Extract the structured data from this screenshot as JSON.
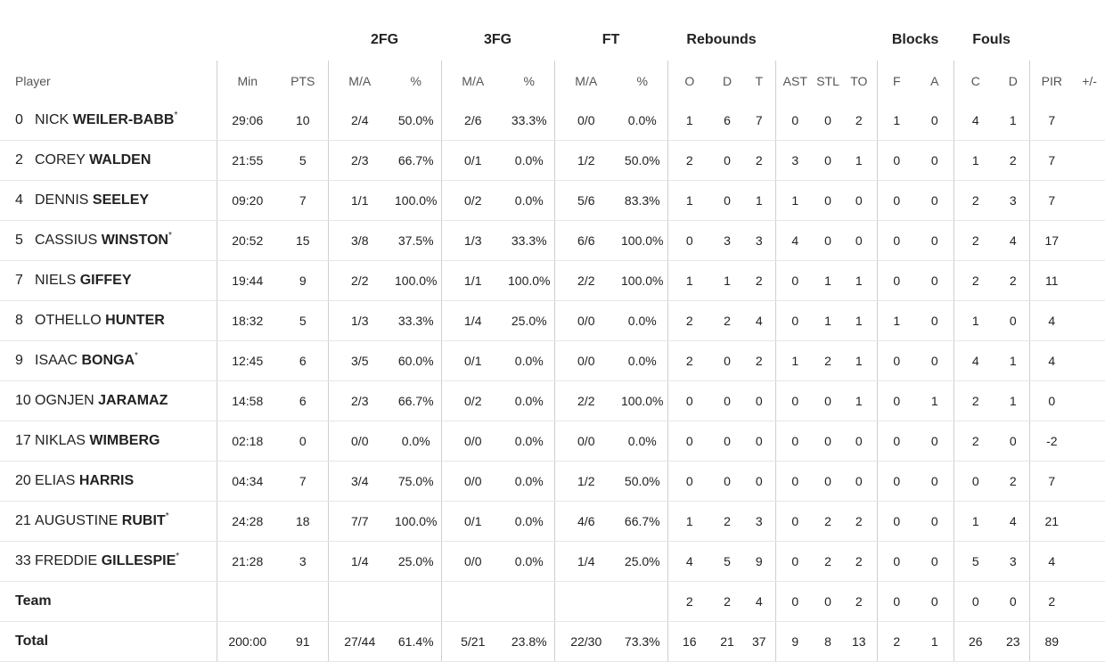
{
  "groups": {
    "fg2": "2FG",
    "fg3": "3FG",
    "ft": "FT",
    "rebounds": "Rebounds",
    "blocks": "Blocks",
    "fouls": "Fouls"
  },
  "columns": {
    "player": "Player",
    "min": "Min",
    "pts": "PTS",
    "fg2_ma": "M/A",
    "fg2_pct": "%",
    "fg3_ma": "M/A",
    "fg3_pct": "%",
    "ft_ma": "M/A",
    "ft_pct": "%",
    "reb_o": "O",
    "reb_d": "D",
    "reb_t": "T",
    "ast": "AST",
    "stl": "STL",
    "to": "TO",
    "blk_f": "F",
    "blk_a": "A",
    "foul_c": "C",
    "foul_d": "D",
    "pir": "PIR",
    "pm": "+/-"
  },
  "players": [
    {
      "number": "0",
      "first": "NICK",
      "last": "WEILER-BABB",
      "star": "*",
      "min": "29:06",
      "pts": "10",
      "fg2_ma": "2/4",
      "fg2_pct": "50.0%",
      "fg3_ma": "2/6",
      "fg3_pct": "33.3%",
      "ft_ma": "0/0",
      "ft_pct": "0.0%",
      "reb_o": "1",
      "reb_d": "6",
      "reb_t": "7",
      "ast": "0",
      "stl": "0",
      "to": "2",
      "blk_f": "1",
      "blk_a": "0",
      "foul_c": "4",
      "foul_d": "1",
      "pir": "7",
      "pm": ""
    },
    {
      "number": "2",
      "first": "COREY",
      "last": "WALDEN",
      "star": "",
      "min": "21:55",
      "pts": "5",
      "fg2_ma": "2/3",
      "fg2_pct": "66.7%",
      "fg3_ma": "0/1",
      "fg3_pct": "0.0%",
      "ft_ma": "1/2",
      "ft_pct": "50.0%",
      "reb_o": "2",
      "reb_d": "0",
      "reb_t": "2",
      "ast": "3",
      "stl": "0",
      "to": "1",
      "blk_f": "0",
      "blk_a": "0",
      "foul_c": "1",
      "foul_d": "2",
      "pir": "7",
      "pm": ""
    },
    {
      "number": "4",
      "first": "DENNIS",
      "last": "SEELEY",
      "star": "",
      "min": "09:20",
      "pts": "7",
      "fg2_ma": "1/1",
      "fg2_pct": "100.0%",
      "fg3_ma": "0/2",
      "fg3_pct": "0.0%",
      "ft_ma": "5/6",
      "ft_pct": "83.3%",
      "reb_o": "1",
      "reb_d": "0",
      "reb_t": "1",
      "ast": "1",
      "stl": "0",
      "to": "0",
      "blk_f": "0",
      "blk_a": "0",
      "foul_c": "2",
      "foul_d": "3",
      "pir": "7",
      "pm": ""
    },
    {
      "number": "5",
      "first": "CASSIUS",
      "last": "WINSTON",
      "star": "*",
      "min": "20:52",
      "pts": "15",
      "fg2_ma": "3/8",
      "fg2_pct": "37.5%",
      "fg3_ma": "1/3",
      "fg3_pct": "33.3%",
      "ft_ma": "6/6",
      "ft_pct": "100.0%",
      "reb_o": "0",
      "reb_d": "3",
      "reb_t": "3",
      "ast": "4",
      "stl": "0",
      "to": "0",
      "blk_f": "0",
      "blk_a": "0",
      "foul_c": "2",
      "foul_d": "4",
      "pir": "17",
      "pm": ""
    },
    {
      "number": "7",
      "first": "NIELS",
      "last": "GIFFEY",
      "star": "",
      "min": "19:44",
      "pts": "9",
      "fg2_ma": "2/2",
      "fg2_pct": "100.0%",
      "fg3_ma": "1/1",
      "fg3_pct": "100.0%",
      "ft_ma": "2/2",
      "ft_pct": "100.0%",
      "reb_o": "1",
      "reb_d": "1",
      "reb_t": "2",
      "ast": "0",
      "stl": "1",
      "to": "1",
      "blk_f": "0",
      "blk_a": "0",
      "foul_c": "2",
      "foul_d": "2",
      "pir": "11",
      "pm": ""
    },
    {
      "number": "8",
      "first": "OTHELLO",
      "last": "HUNTER",
      "star": "",
      "min": "18:32",
      "pts": "5",
      "fg2_ma": "1/3",
      "fg2_pct": "33.3%",
      "fg3_ma": "1/4",
      "fg3_pct": "25.0%",
      "ft_ma": "0/0",
      "ft_pct": "0.0%",
      "reb_o": "2",
      "reb_d": "2",
      "reb_t": "4",
      "ast": "0",
      "stl": "1",
      "to": "1",
      "blk_f": "1",
      "blk_a": "0",
      "foul_c": "1",
      "foul_d": "0",
      "pir": "4",
      "pm": ""
    },
    {
      "number": "9",
      "first": "ISAAC",
      "last": "BONGA",
      "star": "*",
      "min": "12:45",
      "pts": "6",
      "fg2_ma": "3/5",
      "fg2_pct": "60.0%",
      "fg3_ma": "0/1",
      "fg3_pct": "0.0%",
      "ft_ma": "0/0",
      "ft_pct": "0.0%",
      "reb_o": "2",
      "reb_d": "0",
      "reb_t": "2",
      "ast": "1",
      "stl": "2",
      "to": "1",
      "blk_f": "0",
      "blk_a": "0",
      "foul_c": "4",
      "foul_d": "1",
      "pir": "4",
      "pm": ""
    },
    {
      "number": "10",
      "first": "OGNJEN",
      "last": "JARAMAZ",
      "star": "",
      "min": "14:58",
      "pts": "6",
      "fg2_ma": "2/3",
      "fg2_pct": "66.7%",
      "fg3_ma": "0/2",
      "fg3_pct": "0.0%",
      "ft_ma": "2/2",
      "ft_pct": "100.0%",
      "reb_o": "0",
      "reb_d": "0",
      "reb_t": "0",
      "ast": "0",
      "stl": "0",
      "to": "1",
      "blk_f": "0",
      "blk_a": "1",
      "foul_c": "2",
      "foul_d": "1",
      "pir": "0",
      "pm": ""
    },
    {
      "number": "17",
      "first": "NIKLAS",
      "last": "WIMBERG",
      "star": "",
      "min": "02:18",
      "pts": "0",
      "fg2_ma": "0/0",
      "fg2_pct": "0.0%",
      "fg3_ma": "0/0",
      "fg3_pct": "0.0%",
      "ft_ma": "0/0",
      "ft_pct": "0.0%",
      "reb_o": "0",
      "reb_d": "0",
      "reb_t": "0",
      "ast": "0",
      "stl": "0",
      "to": "0",
      "blk_f": "0",
      "blk_a": "0",
      "foul_c": "2",
      "foul_d": "0",
      "pir": "-2",
      "pm": ""
    },
    {
      "number": "20",
      "first": "ELIAS",
      "last": "HARRIS",
      "star": "",
      "min": "04:34",
      "pts": "7",
      "fg2_ma": "3/4",
      "fg2_pct": "75.0%",
      "fg3_ma": "0/0",
      "fg3_pct": "0.0%",
      "ft_ma": "1/2",
      "ft_pct": "50.0%",
      "reb_o": "0",
      "reb_d": "0",
      "reb_t": "0",
      "ast": "0",
      "stl": "0",
      "to": "0",
      "blk_f": "0",
      "blk_a": "0",
      "foul_c": "0",
      "foul_d": "2",
      "pir": "7",
      "pm": ""
    },
    {
      "number": "21",
      "first": "AUGUSTINE",
      "last": "RUBIT",
      "star": "*",
      "min": "24:28",
      "pts": "18",
      "fg2_ma": "7/7",
      "fg2_pct": "100.0%",
      "fg3_ma": "0/1",
      "fg3_pct": "0.0%",
      "ft_ma": "4/6",
      "ft_pct": "66.7%",
      "reb_o": "1",
      "reb_d": "2",
      "reb_t": "3",
      "ast": "0",
      "stl": "2",
      "to": "2",
      "blk_f": "0",
      "blk_a": "0",
      "foul_c": "1",
      "foul_d": "4",
      "pir": "21",
      "pm": ""
    },
    {
      "number": "33",
      "first": "FREDDIE",
      "last": "GILLESPIE",
      "star": "*",
      "min": "21:28",
      "pts": "3",
      "fg2_ma": "1/4",
      "fg2_pct": "25.0%",
      "fg3_ma": "0/0",
      "fg3_pct": "0.0%",
      "ft_ma": "1/4",
      "ft_pct": "25.0%",
      "reb_o": "4",
      "reb_d": "5",
      "reb_t": "9",
      "ast": "0",
      "stl": "2",
      "to": "2",
      "blk_f": "0",
      "blk_a": "0",
      "foul_c": "5",
      "foul_d": "3",
      "pir": "4",
      "pm": ""
    }
  ],
  "team": {
    "label": "Team",
    "min": "",
    "pts": "",
    "fg2_ma": "",
    "fg2_pct": "",
    "fg3_ma": "",
    "fg3_pct": "",
    "ft_ma": "",
    "ft_pct": "",
    "reb_o": "2",
    "reb_d": "2",
    "reb_t": "4",
    "ast": "0",
    "stl": "0",
    "to": "2",
    "blk_f": "0",
    "blk_a": "0",
    "foul_c": "0",
    "foul_d": "0",
    "pir": "2",
    "pm": ""
  },
  "total": {
    "label": "Total",
    "min": "200:00",
    "pts": "91",
    "fg2_ma": "27/44",
    "fg2_pct": "61.4%",
    "fg3_ma": "5/21",
    "fg3_pct": "23.8%",
    "ft_ma": "22/30",
    "ft_pct": "73.3%",
    "reb_o": "16",
    "reb_d": "21",
    "reb_t": "37",
    "ast": "9",
    "stl": "8",
    "to": "13",
    "blk_f": "2",
    "blk_a": "1",
    "foul_c": "26",
    "foul_d": "23",
    "pir": "89",
    "pm": ""
  }
}
